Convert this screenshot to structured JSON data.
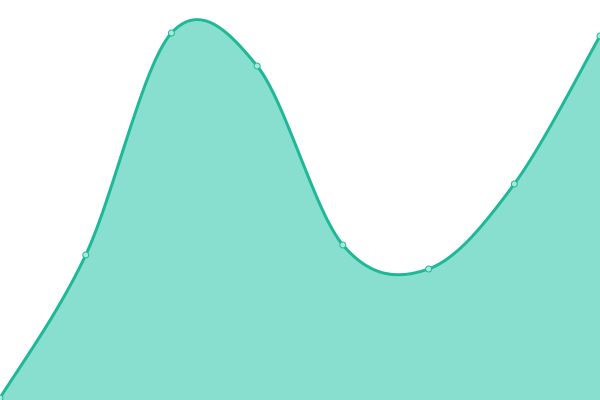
{
  "chart_data": {
    "type": "area",
    "x": [
      0,
      1,
      2,
      3,
      4,
      5,
      6,
      7
    ],
    "series": [
      {
        "values": [
          2,
          145,
          367,
          334,
          155,
          131,
          216,
          364
        ]
      }
    ],
    "xlim": [
      0,
      7
    ],
    "ylim": [
      0,
      400
    ],
    "title": "",
    "xlabel": "",
    "ylabel": "",
    "grid": false,
    "axes_visible": false,
    "smooth": true,
    "colors": {
      "line": "#1fb896",
      "fill": "#89dfcf",
      "marker_fill": "#a6ead9"
    }
  }
}
